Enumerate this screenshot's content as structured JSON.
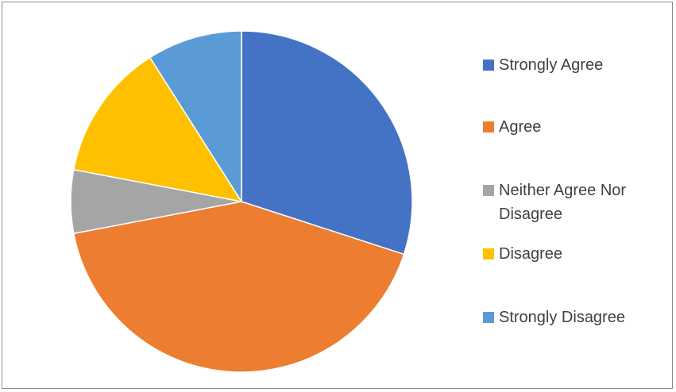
{
  "chart_data": {
    "type": "pie",
    "categories": [
      "Strongly Agree",
      "Agree",
      "Neither Agree Nor Disagree",
      "Disagree",
      "Strongly Disagree"
    ],
    "values": [
      30,
      42,
      6,
      13,
      9
    ],
    "colors": [
      "#4472C4",
      "#ED7D31",
      "#A5A5A5",
      "#FFC000",
      "#5B9BD5"
    ],
    "legend": {
      "placement": "right",
      "items": [
        {
          "label": "Strongly Agree",
          "color": "#4472C4"
        },
        {
          "label": "Agree",
          "color": "#ED7D31"
        },
        {
          "label": "Neither Agree Nor Disagree",
          "color": "#A5A5A5"
        },
        {
          "label": "Disagree",
          "color": "#FFC000"
        },
        {
          "label": "Strongly Disagree",
          "color": "#5B9BD5"
        }
      ]
    }
  }
}
